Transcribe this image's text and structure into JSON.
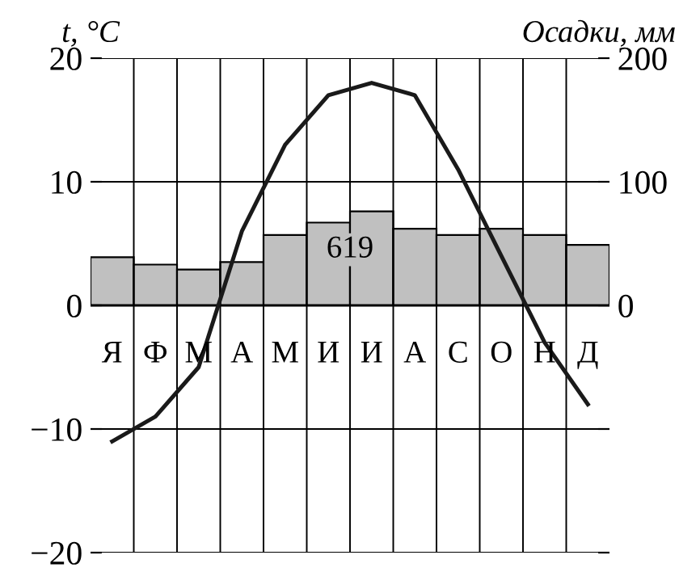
{
  "chart_data": {
    "type": "bar",
    "ylabel": "t, °C",
    "y2label": "Осадки, мм",
    "categories": [
      "Я",
      "Ф",
      "М",
      "А",
      "М",
      "И",
      "И",
      "А",
      "С",
      "О",
      "Н",
      "Д"
    ],
    "series": [
      {
        "axis": "y2",
        "color": "#c0c0c0",
        "values": [
          39,
          33,
          29,
          35,
          57,
          67,
          76,
          62,
          57,
          62,
          57,
          49
        ]
      },
      {
        "type": "line",
        "axis": "y",
        "color": "#1a1a1a",
        "values": [
          -11,
          -9,
          -5,
          6,
          13,
          17,
          18,
          17,
          11,
          4,
          -3,
          -8
        ]
      }
    ],
    "ylim": [
      -20,
      20
    ],
    "yticks": [
      {
        "value": -20,
        "label": "−20"
      },
      {
        "value": -10,
        "label": "−10"
      },
      0,
      10,
      20
    ],
    "y2lim": [
      -200,
      200
    ],
    "y2ticks": [
      {
        "value": -200,
        "label": null
      },
      {
        "value": -100,
        "label": null
      },
      0,
      100,
      200
    ],
    "annotations": [
      "619"
    ],
    "grid": true,
    "marker": "none",
    "line_style": "solid",
    "legend": false
  }
}
